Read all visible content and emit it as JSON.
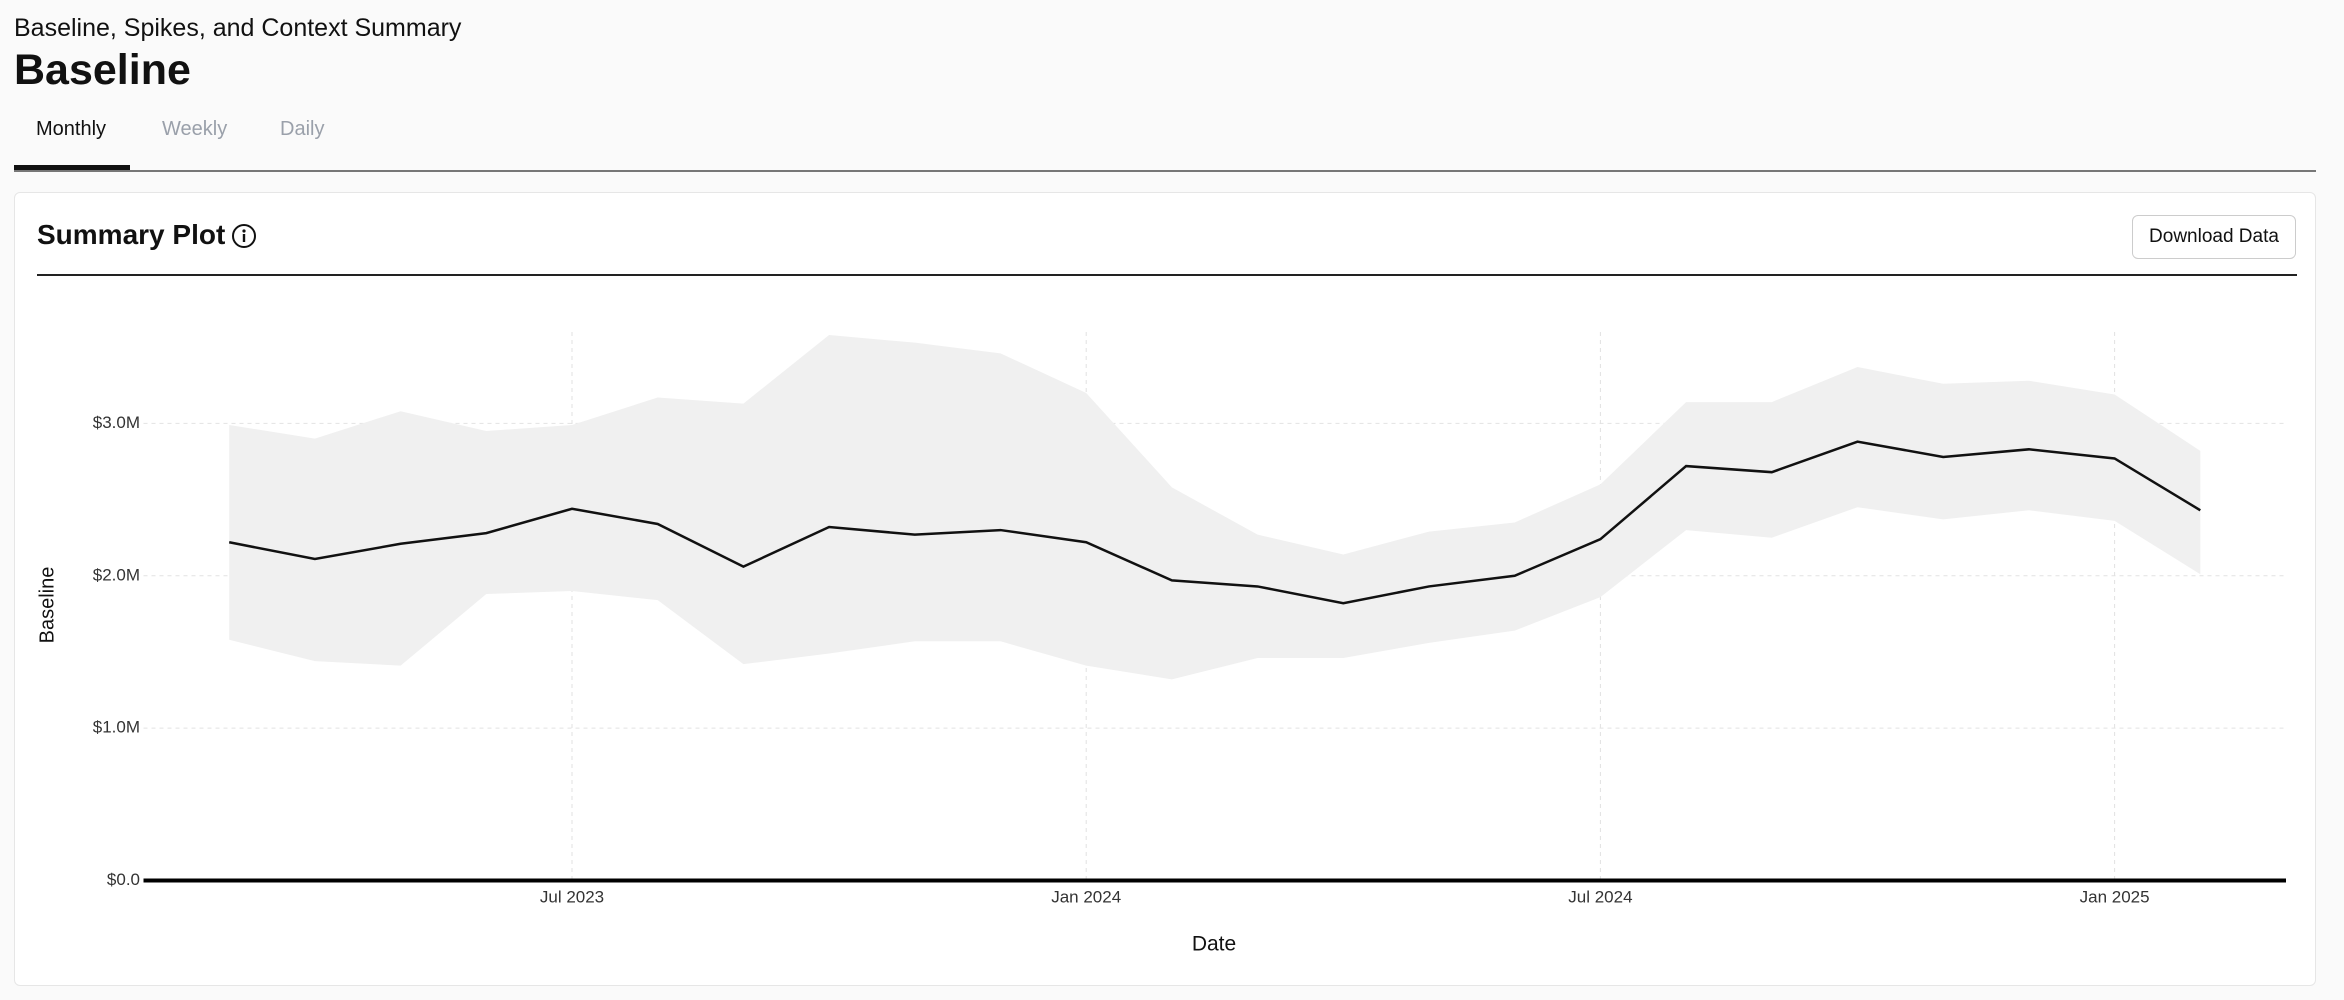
{
  "header": {
    "subtitle": "Baseline, Spikes, and Context Summary",
    "title": "Baseline"
  },
  "tabs": [
    "Monthly",
    "Weekly",
    "Daily"
  ],
  "card": {
    "title": "Summary Plot",
    "button": "Download Data"
  },
  "chart_data": {
    "type": "line",
    "xlabel": "Date",
    "ylabel": "Baseline",
    "x": [
      "2023-03",
      "2023-04",
      "2023-05",
      "2023-06",
      "2023-07",
      "2023-08",
      "2023-09",
      "2023-10",
      "2023-11",
      "2023-12",
      "2024-01",
      "2024-02",
      "2024-03",
      "2024-04",
      "2024-05",
      "2024-06",
      "2024-07",
      "2024-08",
      "2024-09",
      "2024-10",
      "2024-11",
      "2024-12",
      "2025-01",
      "2025-02"
    ],
    "series": [
      {
        "name": "Baseline",
        "color": "#111111",
        "values": [
          2220000,
          2110000,
          2210000,
          2280000,
          2440000,
          2340000,
          2060000,
          2320000,
          2270000,
          2300000,
          2220000,
          1970000,
          1930000,
          1820000,
          1930000,
          2000000,
          2240000,
          2720000,
          2680000,
          2880000,
          2780000,
          2830000,
          2770000,
          2430000
        ]
      }
    ],
    "band": {
      "color": "#f0f0f0",
      "upper": [
        2990000,
        2900000,
        3080000,
        2950000,
        2990000,
        3170000,
        3130000,
        3580000,
        3530000,
        3460000,
        3200000,
        2580000,
        2270000,
        2140000,
        2290000,
        2350000,
        2600000,
        3140000,
        3140000,
        3370000,
        3260000,
        3280000,
        3190000,
        2820000
      ],
      "lower": [
        1580000,
        1440000,
        1410000,
        1880000,
        1900000,
        1840000,
        1420000,
        1490000,
        1570000,
        1570000,
        1410000,
        1320000,
        1460000,
        1460000,
        1560000,
        1640000,
        1860000,
        2300000,
        2250000,
        2450000,
        2370000,
        2430000,
        2360000,
        2010000
      ]
    },
    "xlim": [
      "2023-02",
      "2025-03"
    ],
    "xticks": [
      {
        "value": "2023-07",
        "label": "Jul 2023"
      },
      {
        "value": "2024-01",
        "label": "Jan 2024"
      },
      {
        "value": "2024-07",
        "label": "Jul 2024"
      },
      {
        "value": "2025-01",
        "label": "Jan 2025"
      }
    ],
    "ylim": [
      0,
      3600000
    ],
    "yticks": [
      {
        "value": 0,
        "label": "$0.0"
      },
      {
        "value": 1000000,
        "label": "$1.0M"
      },
      {
        "value": 2000000,
        "label": "$2.0M"
      },
      {
        "value": 3000000,
        "label": "$3.0M"
      }
    ],
    "grid": true
  }
}
